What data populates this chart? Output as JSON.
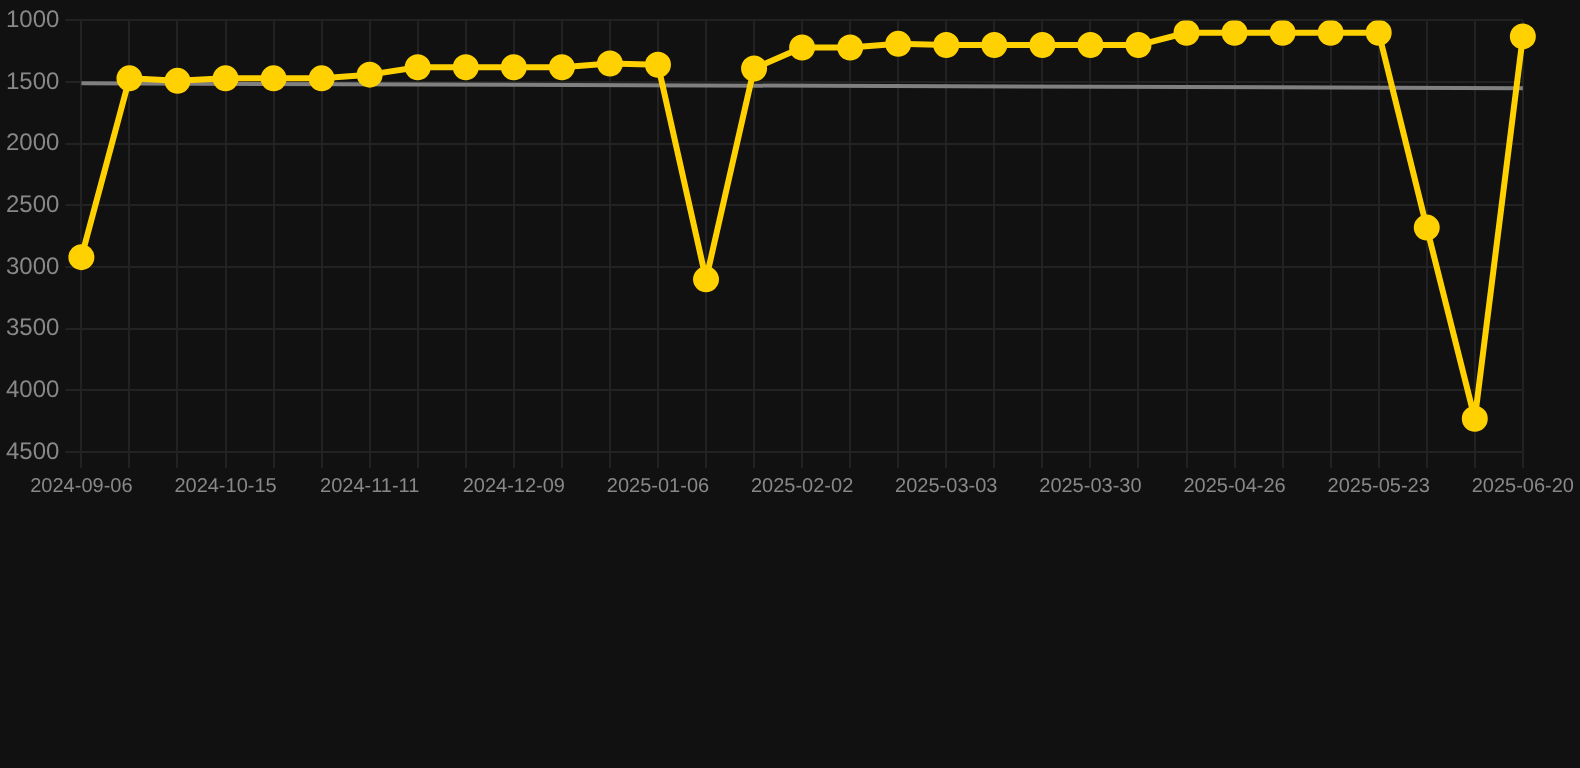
{
  "chart_data": {
    "type": "line",
    "categories": [
      "2024-09-06",
      null,
      null,
      "2024-10-15",
      null,
      null,
      "2024-11-11",
      null,
      null,
      "2024-12-09",
      null,
      null,
      "2025-01-06",
      null,
      null,
      "2025-02-02",
      null,
      null,
      "2025-03-03",
      null,
      null,
      "2025-03-30",
      null,
      null,
      "2025-04-26",
      null,
      null,
      "2025-05-23",
      null,
      null,
      "2025-06-20"
    ],
    "series": [
      {
        "color": "#ffd100",
        "marker": "circle",
        "values": [
          2920,
          1470,
          1490,
          1470,
          1470,
          1470,
          1440,
          1380,
          1380,
          1380,
          1380,
          1350,
          1360,
          3100,
          1390,
          1220,
          1220,
          1190,
          1200,
          1200,
          1200,
          1200,
          1200,
          1100,
          1100,
          1100,
          1100,
          1100,
          2680,
          4230,
          1130
        ]
      },
      {
        "color": "#808080",
        "marker": "none",
        "values": [
          1510,
          null,
          null,
          null,
          null,
          null,
          null,
          null,
          null,
          null,
          null,
          null,
          null,
          null,
          null,
          null,
          null,
          null,
          null,
          null,
          null,
          null,
          null,
          null,
          null,
          null,
          null,
          null,
          null,
          null,
          1550
        ]
      }
    ],
    "ylim": [
      4500,
      1000
    ],
    "yticks": [
      1000,
      1500,
      2000,
      2500,
      3000,
      3500,
      4000,
      4500
    ],
    "grid": true,
    "legend": false
  }
}
